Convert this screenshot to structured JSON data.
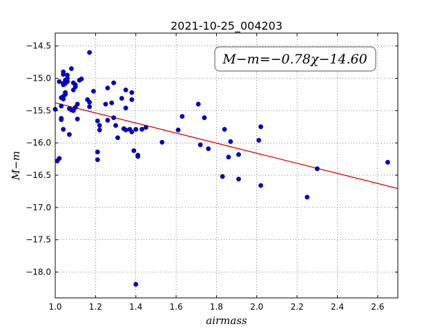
{
  "chart_data": {
    "type": "scatter",
    "title": "2021-10-25_004203",
    "xlabel": "airmass",
    "ylabel": "M−m",
    "xlim": [
      1.0,
      2.7
    ],
    "ylim": [
      -18.4,
      -14.3
    ],
    "xticks": [
      "1.0",
      "1.2",
      "1.4",
      "1.6",
      "1.8",
      "2.0",
      "2.2",
      "2.4",
      "2.6"
    ],
    "yticks": [
      "−14.5",
      "−15.0",
      "−15.5",
      "−16.0",
      "−16.5",
      "−17.0",
      "−17.5",
      "−18.0"
    ],
    "grid": true,
    "annotation": "M−m=−0.78χ−14.60",
    "colors": {
      "points": "#0000cc",
      "fit_line": "#e00000"
    },
    "fit": {
      "slope": -0.78,
      "intercept": -14.6
    },
    "points": [
      [
        1.0,
        -15.48
      ],
      [
        1.01,
        -16.28
      ],
      [
        1.02,
        -16.24
      ],
      [
        1.02,
        -15.05
      ],
      [
        1.03,
        -15.43
      ],
      [
        1.03,
        -15.3
      ],
      [
        1.03,
        -15.62
      ],
      [
        1.03,
        -15.64
      ],
      [
        1.04,
        -14.9
      ],
      [
        1.04,
        -14.94
      ],
      [
        1.04,
        -15.08
      ],
      [
        1.04,
        -15.1
      ],
      [
        1.04,
        -15.28
      ],
      [
        1.04,
        -15.32
      ],
      [
        1.04,
        -15.79
      ],
      [
        1.05,
        -15.03
      ],
      [
        1.05,
        -15.25
      ],
      [
        1.05,
        -15.22
      ],
      [
        1.05,
        -15.08
      ],
      [
        1.06,
        -14.95
      ],
      [
        1.06,
        -15.0
      ],
      [
        1.06,
        -15.05
      ],
      [
        1.07,
        -15.47
      ],
      [
        1.07,
        -15.87
      ],
      [
        1.08,
        -14.85
      ],
      [
        1.08,
        -15.49
      ],
      [
        1.09,
        -15.5
      ],
      [
        1.09,
        -15.07
      ],
      [
        1.09,
        -15.18
      ],
      [
        1.1,
        -15.13
      ],
      [
        1.1,
        -15.1
      ],
      [
        1.1,
        -15.45
      ],
      [
        1.11,
        -15.4
      ],
      [
        1.11,
        -15.63
      ],
      [
        1.12,
        -15.03
      ],
      [
        1.13,
        -15.01
      ],
      [
        1.16,
        -15.33
      ],
      [
        1.17,
        -15.37
      ],
      [
        1.17,
        -15.44
      ],
      [
        1.17,
        -14.6
      ],
      [
        1.19,
        -15.2
      ],
      [
        1.21,
        -15.66
      ],
      [
        1.21,
        -16.14
      ],
      [
        1.21,
        -16.26
      ],
      [
        1.22,
        -15.73
      ],
      [
        1.22,
        -15.8
      ],
      [
        1.25,
        -15.4
      ],
      [
        1.26,
        -15.15
      ],
      [
        1.26,
        -15.65
      ],
      [
        1.28,
        -15.38
      ],
      [
        1.29,
        -15.61
      ],
      [
        1.29,
        -15.07
      ],
      [
        1.3,
        -15.73
      ],
      [
        1.31,
        -15.92
      ],
      [
        1.33,
        -15.31
      ],
      [
        1.34,
        -15.78
      ],
      [
        1.35,
        -15.46
      ],
      [
        1.35,
        -15.18
      ],
      [
        1.35,
        -15.8
      ],
      [
        1.37,
        -15.79
      ],
      [
        1.38,
        -15.22
      ],
      [
        1.38,
        -15.33
      ],
      [
        1.38,
        -15.83
      ],
      [
        1.39,
        -16.12
      ],
      [
        1.4,
        -15.79
      ],
      [
        1.4,
        -18.19
      ],
      [
        1.41,
        -16.21
      ],
      [
        1.41,
        -16.19
      ],
      [
        1.43,
        -15.79
      ],
      [
        1.45,
        -15.76
      ],
      [
        1.53,
        -15.99
      ],
      [
        1.61,
        -15.8
      ],
      [
        1.63,
        -15.59
      ],
      [
        1.71,
        -15.4
      ],
      [
        1.72,
        -16.03
      ],
      [
        1.74,
        -15.61
      ],
      [
        1.76,
        -16.09
      ],
      [
        1.83,
        -16.52
      ],
      [
        1.84,
        -15.79
      ],
      [
        1.86,
        -16.22
      ],
      [
        1.87,
        -15.98
      ],
      [
        1.91,
        -16.18
      ],
      [
        1.91,
        -16.56
      ],
      [
        2.01,
        -15.96
      ],
      [
        2.02,
        -15.75
      ],
      [
        2.02,
        -16.66
      ],
      [
        2.25,
        -16.84
      ],
      [
        2.3,
        -16.4
      ],
      [
        2.65,
        -16.3
      ]
    ]
  }
}
